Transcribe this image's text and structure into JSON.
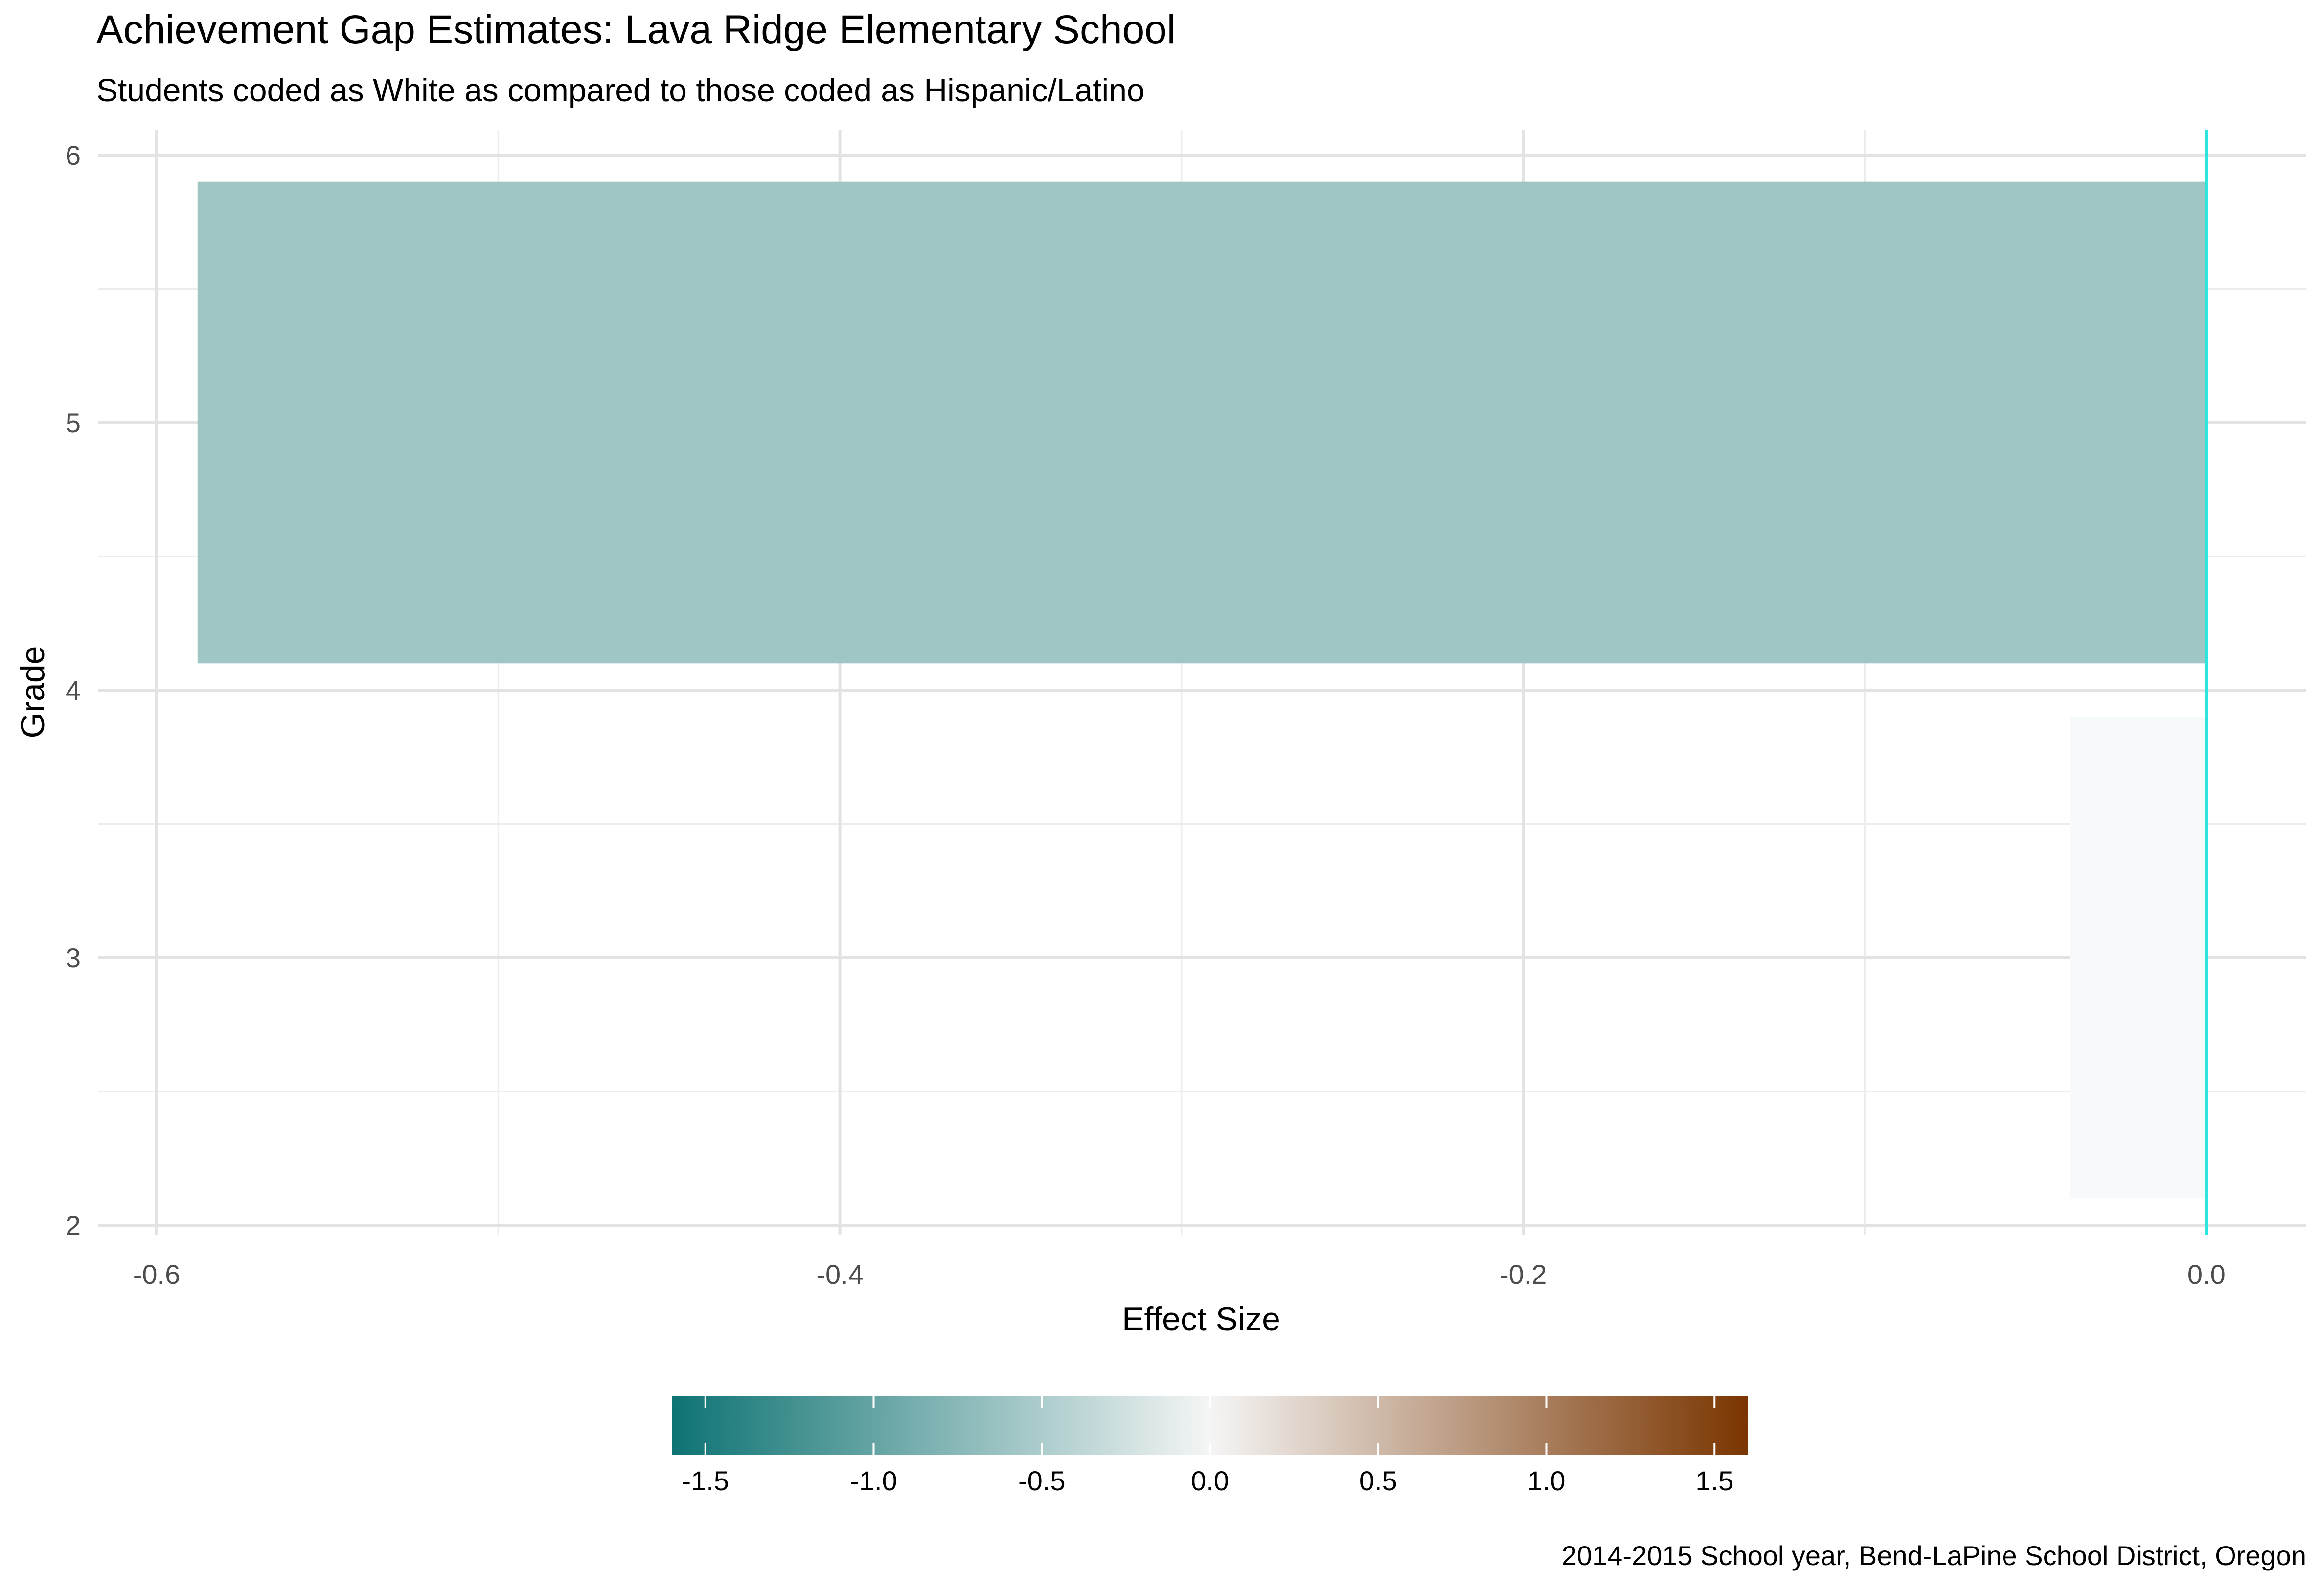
{
  "chart_data": {
    "type": "bar",
    "orientation": "horizontal",
    "title": "Achievement Gap Estimates: Lava Ridge Elementary School",
    "subtitle": "Students coded as White as compared to those coded as Hispanic/Latino",
    "xlabel": "Effect Size",
    "ylabel": "Grade",
    "caption": "2014-2015 School year, Bend-LaPine School District, Oregon",
    "xlim": [
      -0.6,
      0.0
    ],
    "ylim": [
      2,
      6
    ],
    "x_ticks": [
      {
        "value": -0.6,
        "label": "-0.6"
      },
      {
        "value": -0.4,
        "label": "-0.4"
      },
      {
        "value": -0.2,
        "label": "-0.2"
      },
      {
        "value": 0.0,
        "label": "0.0"
      }
    ],
    "y_ticks": [
      {
        "value": 2,
        "label": "2"
      },
      {
        "value": 3,
        "label": "3"
      },
      {
        "value": 4,
        "label": "4"
      },
      {
        "value": 5,
        "label": "5"
      },
      {
        "value": 6,
        "label": "6"
      }
    ],
    "bars": [
      {
        "grade_from": 2.1,
        "grade_to": 3.9,
        "value": -0.04,
        "color": "#f7fafa"
      },
      {
        "grade_from": 4.1,
        "grade_to": 5.9,
        "value": -0.588,
        "color": "#9fc5c5"
      }
    ],
    "reference_line": {
      "value": 0.0,
      "color": "#2ee6e0"
    },
    "grid": true,
    "legend": {
      "position": "bottom",
      "type": "colorbar",
      "range": [
        -1.6,
        1.6
      ],
      "low_color": "#0e7373",
      "mid_color": "#f5f5f5",
      "high_color": "#7a3500",
      "ticks": [
        {
          "value": -1.5,
          "label": "-1.5"
        },
        {
          "value": -1.0,
          "label": "-1.0"
        },
        {
          "value": -0.5,
          "label": "-0.5"
        },
        {
          "value": 0.0,
          "label": "0.0"
        },
        {
          "value": 0.5,
          "label": "0.5"
        },
        {
          "value": 1.0,
          "label": "1.0"
        },
        {
          "value": 1.5,
          "label": "1.5"
        }
      ]
    }
  }
}
